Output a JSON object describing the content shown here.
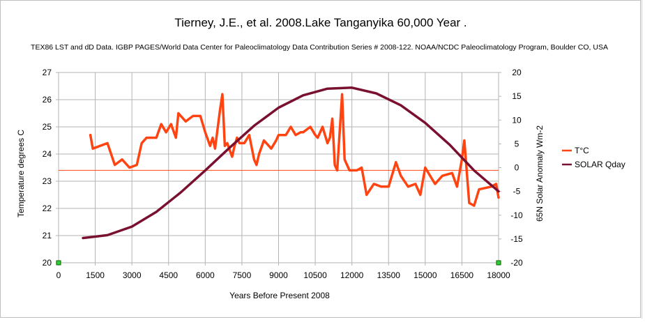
{
  "chart_data": {
    "type": "line",
    "title": "Tierney, J.E., et al.  2008.Lake Tanganyika 60,000 Year .",
    "subtitle": "TEX86 LST and dD Data. IGBP PAGES/World Data Center for Paleoclimatology Data Contribution Series # 2008-122.     NOAA/NCDC Paleoclimatology Program, Boulder CO, USA",
    "xlabel": "Years Before Present 2008",
    "ylabel_left": "Temperature degrees C",
    "ylabel_right": "65N Solar Anomaly Wm-2",
    "xlim": [
      0,
      18000
    ],
    "ylim_left": [
      20,
      27
    ],
    "ylim_right": [
      -20,
      20
    ],
    "x_ticks": [
      "0",
      "1500",
      "3000",
      "4500",
      "6000",
      "7500",
      "9000",
      "10500",
      "12000",
      "13500",
      "15000",
      "16500",
      "18000"
    ],
    "y_left_ticks": [
      "20",
      "21",
      "22",
      "23",
      "24",
      "25",
      "26",
      "27"
    ],
    "y_right_ticks": [
      "20",
      "15",
      "10",
      "5",
      "0",
      "-5",
      "-10",
      "-15",
      "-20"
    ],
    "legend_position": "right",
    "reference_line": {
      "axis": "left",
      "value": 23.4
    },
    "series": [
      {
        "name": "T°C",
        "axis": "left",
        "color": "#ff4411",
        "x": [
          1300,
          1400,
          2000,
          2300,
          2600,
          2900,
          3200,
          3400,
          3600,
          4000,
          4200,
          4400,
          4600,
          4800,
          4900,
          5200,
          5500,
          5800,
          6000,
          6200,
          6300,
          6400,
          6600,
          6700,
          6800,
          6900,
          7100,
          7200,
          7300,
          7400,
          7600,
          7800,
          8000,
          8100,
          8200,
          8400,
          8700,
          8900,
          9000,
          9300,
          9500,
          9700,
          9900,
          10000,
          10300,
          10500,
          10600,
          10800,
          11000,
          11100,
          11200,
          11300,
          11400,
          11600,
          11700,
          11900,
          12200,
          12400,
          12600,
          12900,
          13200,
          13500,
          13800,
          14000,
          14300,
          14600,
          14800,
          15000,
          15200,
          15400,
          15700,
          16100,
          16300,
          16500,
          16600,
          16800,
          17000,
          17200,
          17700,
          17900,
          18000
        ],
        "values": [
          24.7,
          24.2,
          24.4,
          23.6,
          23.8,
          23.5,
          23.6,
          24.4,
          24.6,
          24.6,
          25.1,
          24.8,
          25.1,
          24.6,
          25.5,
          25.2,
          25.4,
          25.4,
          24.8,
          24.3,
          24.6,
          24.2,
          25.6,
          26.2,
          24.3,
          24.4,
          23.9,
          24.3,
          24.6,
          24.4,
          24.4,
          24.7,
          23.8,
          23.6,
          24.0,
          24.5,
          24.2,
          24.5,
          24.7,
          24.7,
          25.0,
          24.7,
          24.8,
          24.8,
          25.0,
          24.7,
          24.6,
          25.0,
          24.4,
          24.6,
          25.3,
          23.6,
          23.4,
          26.2,
          23.8,
          23.4,
          23.4,
          23.5,
          22.5,
          22.9,
          22.8,
          22.8,
          23.7,
          23.2,
          22.8,
          22.9,
          22.5,
          23.5,
          23.2,
          22.9,
          23.2,
          23.3,
          22.8,
          23.8,
          24.5,
          22.2,
          22.1,
          22.7,
          22.8,
          22.9,
          22.4
        ]
      },
      {
        "name": "SOLAR Qday",
        "axis": "right",
        "color": "#7a1030",
        "x": [
          1000,
          2000,
          3000,
          4000,
          5000,
          6000,
          7000,
          8000,
          9000,
          10000,
          11000,
          12000,
          13000,
          14000,
          15000,
          16000,
          17000,
          18000
        ],
        "values": [
          -14.8,
          -14.2,
          -12.4,
          -9.3,
          -5.2,
          -0.6,
          4.2,
          8.8,
          12.6,
          15.2,
          16.6,
          16.8,
          15.6,
          13.1,
          9.4,
          4.8,
          -0.6,
          -5.0
        ]
      }
    ]
  }
}
